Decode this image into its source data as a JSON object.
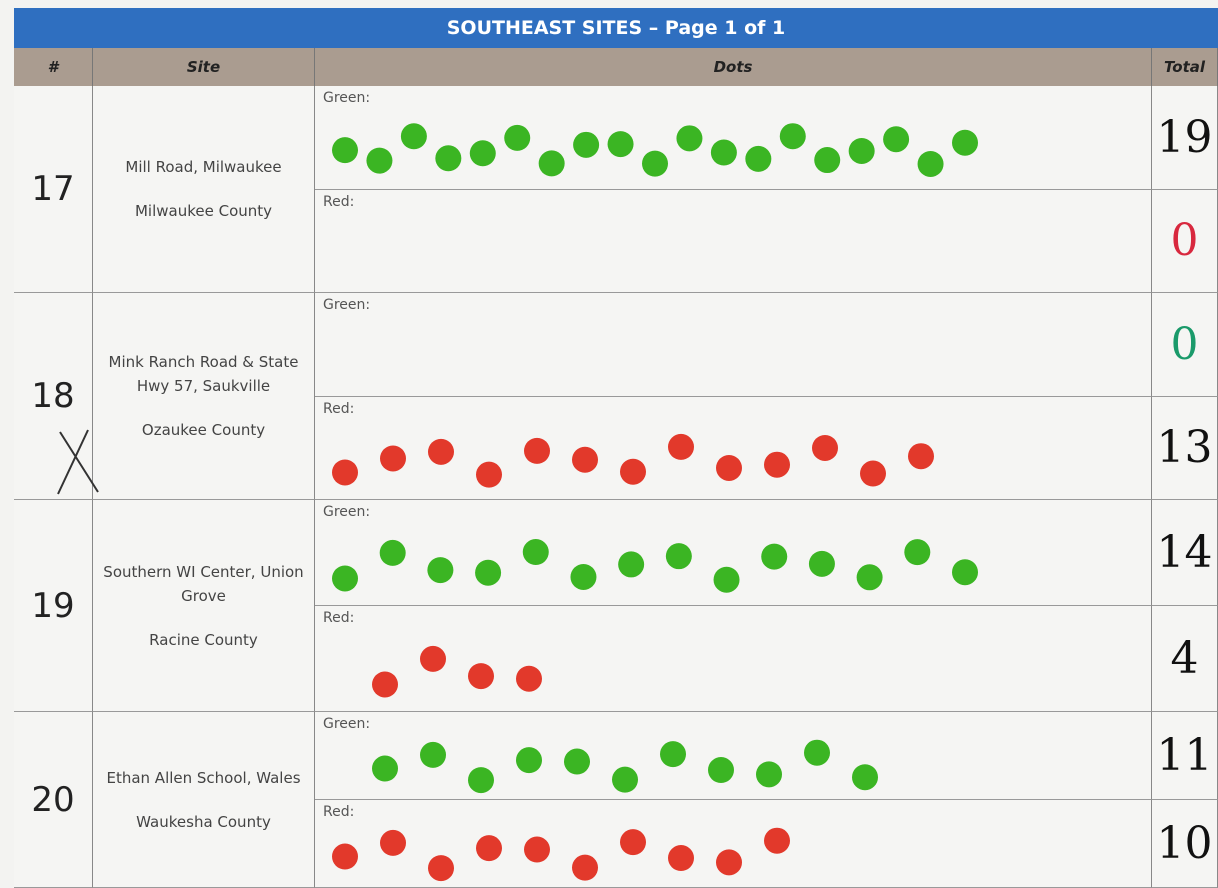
{
  "header": {
    "title": "SOUTHEAST SITES – Page 1 of 1"
  },
  "table": {
    "columns": [
      "#",
      "Site",
      "Dots",
      "Total"
    ],
    "dot_labels": {
      "green": "Green:",
      "red": "Red:"
    },
    "rows": [
      {
        "number": 17,
        "site": "Mill Road, Milwaukee",
        "county": "Milwaukee County",
        "green_total": 19,
        "red_total": 0
      },
      {
        "number": 18,
        "site": "Mink Ranch Road & State Hwy 57, Saukville",
        "county": "Ozaukee County",
        "green_total": 0,
        "red_total": 13
      },
      {
        "number": 19,
        "site": "Southern WI Center, Union Grove",
        "county": "Racine County",
        "green_total": 14,
        "red_total": 4
      },
      {
        "number": 20,
        "site": "Ethan Allen School, Wales",
        "county": "Waukesha County",
        "green_total": 11,
        "red_total": 10
      }
    ]
  }
}
